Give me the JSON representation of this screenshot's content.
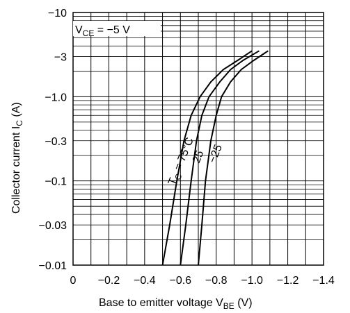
{
  "chart_data": {
    "type": "line",
    "xlabel_main": "Base to emitter voltage  V",
    "xlabel_sub": "BE",
    "xlabel_unit": "  (V)",
    "ylabel_main": "Collector current  I",
    "ylabel_sub": "C",
    "ylabel_unit": "  (A)",
    "x_scale": "linear",
    "y_scale": "log",
    "xlim": [
      0,
      -1.4
    ],
    "ylim": [
      -0.01,
      -10
    ],
    "grid": true,
    "x_ticks": [
      "0",
      "−0.2",
      "−0.4",
      "−0.6",
      "−0.8",
      "−1.0",
      "−1.2",
      "−1.4"
    ],
    "x_tick_values": [
      0,
      -0.2,
      -0.4,
      -0.6,
      -0.8,
      -1.0,
      -1.2,
      -1.4
    ],
    "y_ticks": [
      "−10",
      "−3",
      "−1.0",
      "−0.3",
      "−0.1",
      "−0.03",
      "−0.01"
    ],
    "y_tick_values": [
      -10,
      -3,
      -1.0,
      -0.3,
      -0.1,
      -0.03,
      -0.01
    ],
    "condition": {
      "main": "V",
      "sub": "CE",
      "rest": " = −5 V"
    },
    "series": [
      {
        "name": "T_C = 75°C",
        "x": [
          -0.5,
          -0.54,
          -0.58,
          -0.62,
          -0.66,
          -0.71,
          -0.77,
          -0.84,
          -0.92,
          -1.0
        ],
        "y": [
          -0.01,
          -0.03,
          -0.1,
          -0.3,
          -0.6,
          -1.0,
          -1.5,
          -2.1,
          -2.7,
          -3.5
        ]
      },
      {
        "name": "25",
        "x": [
          -0.6,
          -0.63,
          -0.66,
          -0.69,
          -0.72,
          -0.76,
          -0.82,
          -0.88,
          -0.95,
          -1.04
        ],
        "y": [
          -0.01,
          -0.03,
          -0.1,
          -0.3,
          -0.6,
          -1.0,
          -1.5,
          -2.1,
          -2.7,
          -3.5
        ]
      },
      {
        "name": "−25",
        "x": [
          -0.7,
          -0.72,
          -0.74,
          -0.77,
          -0.8,
          -0.83,
          -0.88,
          -0.94,
          -1.01,
          -1.09
        ],
        "y": [
          -0.01,
          -0.03,
          -0.1,
          -0.3,
          -0.6,
          -1.0,
          -1.5,
          -2.1,
          -2.7,
          -3.5
        ]
      }
    ],
    "curve_labels": [
      {
        "main": "T",
        "sub": "C",
        "rest": " = 75°C"
      },
      {
        "text": "25"
      },
      {
        "text": "−25"
      }
    ]
  }
}
